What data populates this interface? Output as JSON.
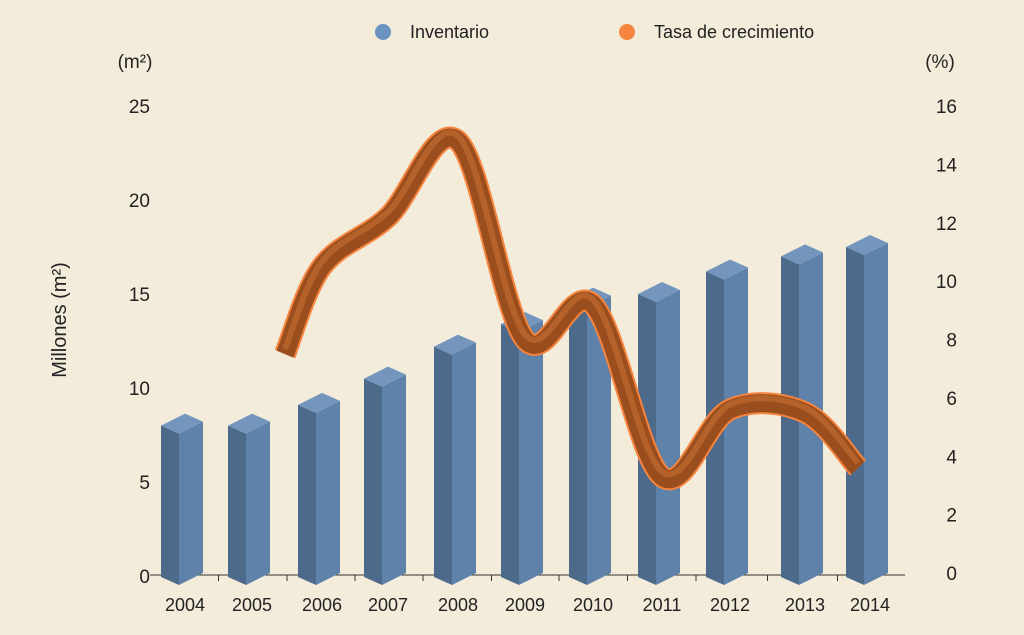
{
  "chart_data": {
    "type": "bar",
    "title": "",
    "legend": {
      "placement": "top-center",
      "entries": [
        "Inventario",
        "Tasa de crecimiento"
      ]
    },
    "categories": [
      "2004",
      "2005",
      "2006",
      "2007",
      "2008",
      "2009",
      "2010",
      "2011",
      "2012",
      "2013",
      "2014"
    ],
    "series": [
      {
        "name": "Inventario",
        "type": "bar",
        "axis": "left",
        "color": "#6a93c0",
        "values": [
          8.0,
          8.0,
          9.1,
          10.5,
          12.2,
          13.4,
          14.7,
          15.0,
          16.2,
          17.0,
          17.5
        ]
      },
      {
        "name": "Tasa de crecimiento",
        "type": "line",
        "axis": "right",
        "color": "#f5843f",
        "values": [
          null,
          7.5,
          10.5,
          12.2,
          14.8,
          8.0,
          9.2,
          3.3,
          5.6,
          5.5,
          3.6
        ]
      }
    ],
    "left_axis": {
      "unit_label": "(m²)",
      "label": "Millones (m²)",
      "ylim": [
        0,
        25
      ],
      "ticks": [
        "0",
        "5",
        "10",
        "15",
        "20",
        "25"
      ]
    },
    "right_axis": {
      "unit_label": "(%)",
      "ylim": [
        0,
        16
      ],
      "ticks": [
        "0",
        "2",
        "4",
        "6",
        "8",
        "10",
        "12",
        "14",
        "16"
      ]
    },
    "grid": false
  }
}
